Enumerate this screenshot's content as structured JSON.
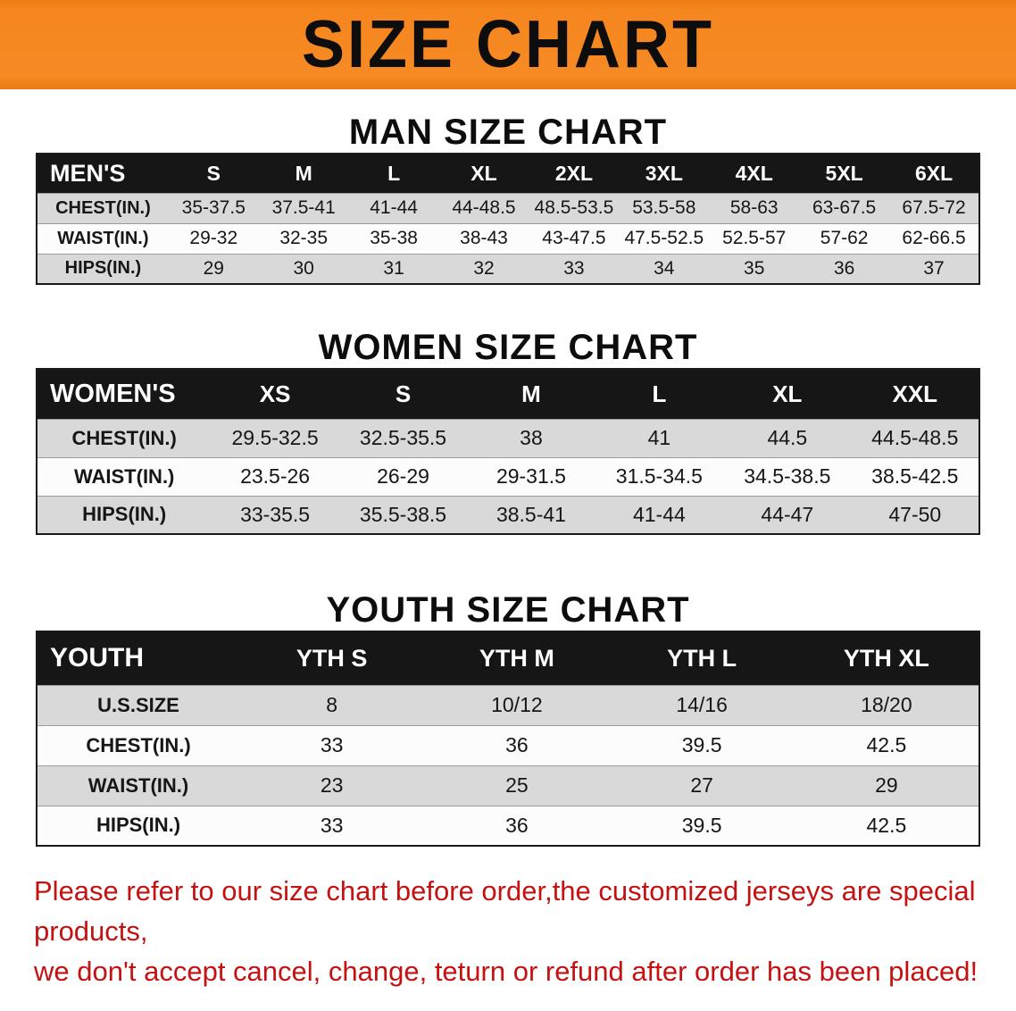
{
  "banner": {
    "title": "SIZE CHART",
    "bg_color": "#f6861f",
    "text_color": "#0d0d0d"
  },
  "men": {
    "heading": "MAN SIZE CHART",
    "table": {
      "header": [
        "MEN'S",
        "S",
        "M",
        "L",
        "XL",
        "2XL",
        "3XL",
        "4XL",
        "5XL",
        "6XL"
      ],
      "rows": [
        [
          "CHEST(IN.)",
          "35-37.5",
          "37.5-41",
          "41-44",
          "44-48.5",
          "48.5-53.5",
          "53.5-58",
          "58-63",
          "63-67.5",
          "67.5-72"
        ],
        [
          "WAIST(IN.)",
          "29-32",
          "32-35",
          "35-38",
          "38-43",
          "43-47.5",
          "47.5-52.5",
          "52.5-57",
          "57-62",
          "62-66.5"
        ],
        [
          "HIPS(IN.)",
          "29",
          "30",
          "31",
          "32",
          "33",
          "34",
          "35",
          "36",
          "37"
        ]
      ]
    }
  },
  "women": {
    "heading": "WOMEN SIZE CHART",
    "table": {
      "header": [
        "WOMEN'S",
        "XS",
        "S",
        "M",
        "L",
        "XL",
        "XXL"
      ],
      "rows": [
        [
          "CHEST(IN.)",
          "29.5-32.5",
          "32.5-35.5",
          "38",
          "41",
          "44.5",
          "44.5-48.5"
        ],
        [
          "WAIST(IN.)",
          "23.5-26",
          "26-29",
          "29-31.5",
          "31.5-34.5",
          "34.5-38.5",
          "38.5-42.5"
        ],
        [
          "HIPS(IN.)",
          "33-35.5",
          "35.5-38.5",
          "38.5-41",
          "41-44",
          "44-47",
          "47-50"
        ]
      ]
    }
  },
  "youth": {
    "heading": "YOUTH SIZE CHART",
    "table": {
      "header": [
        "YOUTH",
        "YTH S",
        "YTH M",
        "YTH L",
        "YTH XL"
      ],
      "rows": [
        [
          "U.S.SIZE",
          "8",
          "10/12",
          "14/16",
          "18/20"
        ],
        [
          "CHEST(IN.)",
          "33",
          "36",
          "39.5",
          "42.5"
        ],
        [
          "WAIST(IN.)",
          "23",
          "25",
          "27",
          "29"
        ],
        [
          "HIPS(IN.)",
          "33",
          "36",
          "39.5",
          "42.5"
        ]
      ]
    }
  },
  "disclaimer": {
    "line1": "Please refer to our size chart before order,the customized jerseys are special products,",
    "line2": "we don't accept cancel, change, teturn or refund after order has been placed!",
    "text_color": "#c41212"
  }
}
